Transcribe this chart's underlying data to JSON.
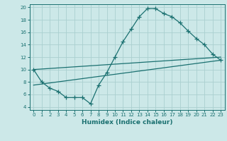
{
  "xlabel": "Humidex (Indice chaleur)",
  "ylabel": "",
  "bg_color": "#cce8e8",
  "grid_color": "#aad0d0",
  "line_color": "#1a7070",
  "xlim": [
    -0.5,
    23.5
  ],
  "ylim": [
    3.5,
    20.5
  ],
  "xticks": [
    0,
    1,
    2,
    3,
    4,
    5,
    6,
    7,
    8,
    9,
    10,
    11,
    12,
    13,
    14,
    15,
    16,
    17,
    18,
    19,
    20,
    21,
    22,
    23
  ],
  "yticks": [
    4,
    6,
    8,
    10,
    12,
    14,
    16,
    18,
    20
  ],
  "line1_x": [
    0,
    1,
    2,
    3,
    4,
    5,
    6,
    7,
    8,
    9,
    10,
    11,
    12,
    13,
    14,
    15,
    16,
    17,
    18,
    19,
    20,
    21,
    22,
    23
  ],
  "line1_y": [
    10,
    8,
    7,
    6.5,
    5.5,
    5.5,
    5.5,
    4.5,
    7.5,
    9.5,
    12,
    14.5,
    16.5,
    18.5,
    19.8,
    19.8,
    19,
    18.5,
    17.5,
    16.2,
    15,
    14,
    12.5,
    11.5
  ],
  "line2_x": [
    0,
    23
  ],
  "line2_y": [
    7.5,
    11.5
  ],
  "line3_x": [
    0,
    23
  ],
  "line3_y": [
    10.0,
    12.0
  ]
}
